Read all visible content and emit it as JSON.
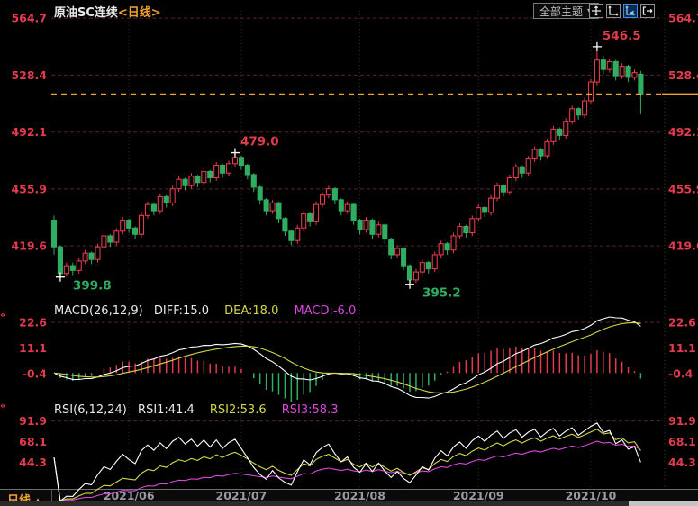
{
  "header": {
    "symbol": "原油SC连续",
    "period_tag": "<日线>",
    "themes_label": "全部主题",
    "dropdown_arrow": "▼",
    "toolbar_icons": [
      "pan-icon",
      "axis-scale-icon",
      "auto-fit-icon",
      "exit-right-icon"
    ],
    "active_icon": "auto-fit-icon"
  },
  "macd_header": {
    "title": "MACD(26,12,9)",
    "diff": "DIFF:15.0",
    "dea": "DEA:18.0",
    "macd": "MACD:-6.0"
  },
  "rsi_header": {
    "title": "RSI(6,12,24)",
    "rsi1": "RSI1:41.4",
    "rsi2": "RSI2:53.6",
    "rsi3": "RSI3:58.3"
  },
  "footer": {
    "period": "日线",
    "arrow": "▲"
  },
  "colors": {
    "up": "#e23b4e",
    "down": "#2fae62",
    "orange": "#f0a231",
    "dea_yellow": "#d6d64a",
    "magenta": "#da4ada",
    "white": "#ffffff",
    "grid": "#58222c",
    "vgrid": "#2c2c34",
    "axis_dot": "#5a2430",
    "text_gray": "#9a9aa2"
  },
  "chart_data": [
    {
      "type": "candlestick",
      "title": "原油SC连续",
      "period": "日线",
      "ylim": [
        392,
        570.5
      ],
      "yticks": [
        564.7,
        528.4,
        492.1,
        455.9,
        419.6
      ],
      "last_price": 516.4,
      "month_marks": [
        {
          "label": "2021/06",
          "day": 12
        },
        {
          "label": "2021/07",
          "day": 30
        },
        {
          "label": "2021/08",
          "day": 49
        },
        {
          "label": "2021/09",
          "day": 68
        },
        {
          "label": "2021/10",
          "day": 86
        }
      ],
      "annotations": [
        {
          "day": 1,
          "price": 399.8,
          "text": "399.8",
          "kind": "low"
        },
        {
          "day": 29,
          "price": 479.0,
          "text": "479.0",
          "kind": "high"
        },
        {
          "day": 57,
          "price": 395.2,
          "text": "395.2",
          "kind": "low"
        },
        {
          "day": 87,
          "price": 546.5,
          "text": "546.5",
          "kind": "high"
        }
      ],
      "candles": [
        [
          436,
          439,
          414,
          419
        ],
        [
          419,
          420,
          399.8,
          402
        ],
        [
          402,
          409,
          400,
          407
        ],
        [
          407,
          409,
          401,
          404
        ],
        [
          404,
          412,
          402,
          410
        ],
        [
          410,
          417,
          408,
          415
        ],
        [
          415,
          416,
          408,
          411
        ],
        [
          411,
          421,
          409,
          419
        ],
        [
          419,
          428,
          417,
          426
        ],
        [
          426,
          427,
          419,
          422
        ],
        [
          422,
          431,
          420,
          429
        ],
        [
          429,
          438,
          427,
          436
        ],
        [
          436,
          437,
          428,
          431
        ],
        [
          431,
          432,
          424,
          427
        ],
        [
          427,
          441,
          425,
          439
        ],
        [
          439,
          448,
          437,
          446
        ],
        [
          446,
          447,
          439,
          442
        ],
        [
          442,
          453,
          440,
          451
        ],
        [
          451,
          452,
          444,
          447
        ],
        [
          447,
          458,
          445,
          456
        ],
        [
          456,
          464,
          454,
          462
        ],
        [
          462,
          463,
          455,
          458
        ],
        [
          458,
          466,
          456,
          464
        ],
        [
          464,
          465,
          457,
          460
        ],
        [
          460,
          469,
          458,
          467
        ],
        [
          467,
          468,
          460,
          463
        ],
        [
          463,
          473,
          461,
          471
        ],
        [
          471,
          472,
          463,
          466
        ],
        [
          466,
          474,
          464,
          472
        ],
        [
          472,
          479,
          470,
          476
        ],
        [
          476,
          477,
          468,
          471
        ],
        [
          471,
          472,
          462,
          465
        ],
        [
          465,
          466,
          454,
          457
        ],
        [
          457,
          458,
          446,
          449
        ],
        [
          449,
          450,
          439,
          442
        ],
        [
          442,
          449,
          440,
          447
        ],
        [
          447,
          448,
          434,
          437
        ],
        [
          437,
          438,
          426,
          429
        ],
        [
          429,
          430,
          420,
          423
        ],
        [
          423,
          433,
          421,
          431
        ],
        [
          431,
          442,
          429,
          440
        ],
        [
          440,
          441,
          432,
          435
        ],
        [
          435,
          448,
          433,
          446
        ],
        [
          446,
          454,
          444,
          452
        ],
        [
          452,
          458,
          450,
          456
        ],
        [
          456,
          457,
          446,
          449
        ],
        [
          449,
          450,
          439,
          442
        ],
        [
          442,
          448,
          440,
          446
        ],
        [
          446,
          447,
          433,
          436
        ],
        [
          436,
          437,
          427,
          430
        ],
        [
          430,
          438,
          428,
          436
        ],
        [
          436,
          437,
          424,
          427
        ],
        [
          427,
          435,
          425,
          433
        ],
        [
          433,
          434,
          421,
          424
        ],
        [
          424,
          425,
          411,
          414
        ],
        [
          414,
          420,
          412,
          418
        ],
        [
          418,
          419,
          404,
          407
        ],
        [
          407,
          408,
          395.2,
          398
        ],
        [
          398,
          405,
          396,
          403
        ],
        [
          403,
          411,
          401,
          409
        ],
        [
          409,
          410,
          402,
          405
        ],
        [
          405,
          416,
          403,
          414
        ],
        [
          414,
          423,
          412,
          421
        ],
        [
          421,
          422,
          414,
          417
        ],
        [
          417,
          428,
          415,
          426
        ],
        [
          426,
          434,
          424,
          432
        ],
        [
          432,
          433,
          425,
          428
        ],
        [
          428,
          439,
          426,
          437
        ],
        [
          437,
          446,
          435,
          444
        ],
        [
          444,
          445,
          438,
          441
        ],
        [
          441,
          452,
          439,
          450
        ],
        [
          450,
          460,
          448,
          458
        ],
        [
          458,
          459,
          451,
          454
        ],
        [
          454,
          465,
          452,
          463
        ],
        [
          463,
          472,
          461,
          470
        ],
        [
          470,
          471,
          463,
          466
        ],
        [
          466,
          477,
          464,
          475
        ],
        [
          475,
          483,
          473,
          481
        ],
        [
          481,
          482,
          474,
          477
        ],
        [
          477,
          488,
          475,
          486
        ],
        [
          486,
          496,
          484,
          494
        ],
        [
          494,
          495,
          487,
          490
        ],
        [
          490,
          501,
          488,
          499
        ],
        [
          499,
          509,
          497,
          507
        ],
        [
          507,
          508,
          500,
          503
        ],
        [
          503,
          514,
          501,
          512
        ],
        [
          512,
          526,
          510,
          524
        ],
        [
          524,
          546.5,
          522,
          538
        ],
        [
          538,
          541,
          529,
          532
        ],
        [
          532,
          539,
          530,
          537
        ],
        [
          537,
          538,
          525,
          528
        ],
        [
          528,
          536,
          526,
          534
        ],
        [
          534,
          535,
          524,
          527
        ],
        [
          527,
          532,
          525,
          530
        ],
        [
          529,
          531,
          503.5,
          516.4
        ]
      ]
    },
    {
      "type": "macd",
      "params": [
        26,
        12,
        9
      ],
      "yticks": [
        22.6,
        11.1,
        -0.4
      ],
      "last": {
        "diff": 15.0,
        "dea": 18.0,
        "macd": -6.0
      }
    },
    {
      "type": "rsi",
      "params": [
        6,
        12,
        24
      ],
      "ylim": [
        14,
        108
      ],
      "yticks": [
        91.9,
        68.1,
        44.3
      ],
      "last": {
        "rsi1": 41.4,
        "rsi2": 53.6,
        "rsi3": 58.3
      }
    }
  ]
}
